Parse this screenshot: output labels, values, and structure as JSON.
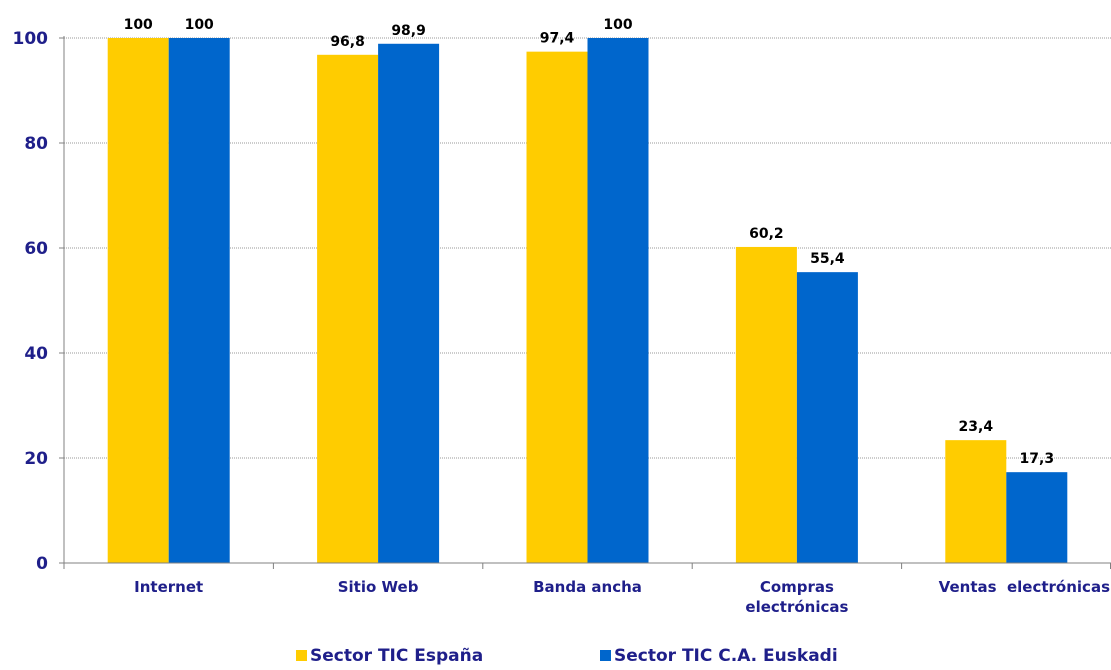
{
  "chart_data": {
    "type": "bar",
    "categories": [
      [
        "Internet"
      ],
      [
        "Sitio Web"
      ],
      [
        "Banda ancha"
      ],
      [
        "Compras",
        "electrónicas"
      ],
      [
        "Ventas  electrónicas"
      ]
    ],
    "series": [
      {
        "name": "Sector TIC España",
        "color": "#FFCC00",
        "values": [
          100,
          96.8,
          97.4,
          60.2,
          23.4
        ],
        "labels": [
          "100",
          "96,8",
          "97,4",
          "60,2",
          "23,4"
        ]
      },
      {
        "name": "Sector TIC C.A. Euskadi",
        "color": "#0066CC",
        "values": [
          100,
          98.9,
          100,
          55.4,
          17.3
        ],
        "labels": [
          "100",
          "98,9",
          "100",
          "55,4",
          "17,3"
        ]
      }
    ],
    "yticks": [
      0,
      20,
      40,
      60,
      80,
      100
    ],
    "ylim": [
      0,
      100
    ],
    "grid": true,
    "legend_position": "bottom"
  }
}
